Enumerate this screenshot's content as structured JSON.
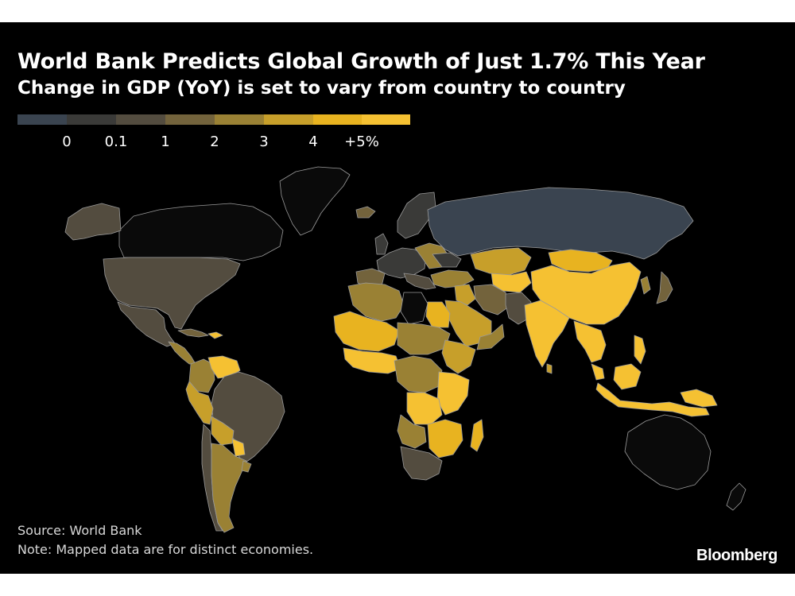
{
  "title": "World Bank Predicts Global Growth of Just 1.7% This Year",
  "subtitle": "Change in GDP (YoY) is set to vary from country to country",
  "legend": {
    "bins": [
      {
        "color": "#3a4450"
      },
      {
        "color": "#3a3a38"
      },
      {
        "color": "#534c3f"
      },
      {
        "color": "#73633c"
      },
      {
        "color": "#9a8134"
      },
      {
        "color": "#c79f2a"
      },
      {
        "color": "#e8b320"
      },
      {
        "color": "#f5c132"
      }
    ],
    "ticks": [
      "0",
      "0.1",
      "1",
      "2",
      "3",
      "4",
      "+5%"
    ]
  },
  "colors": {
    "background": "#000000",
    "no_data": "#0a0a0a",
    "border": "#9a9a9a"
  },
  "source": "Source: World Bank",
  "note": "Note: Mapped data are for distinct economies.",
  "brand": "Bloomberg"
}
